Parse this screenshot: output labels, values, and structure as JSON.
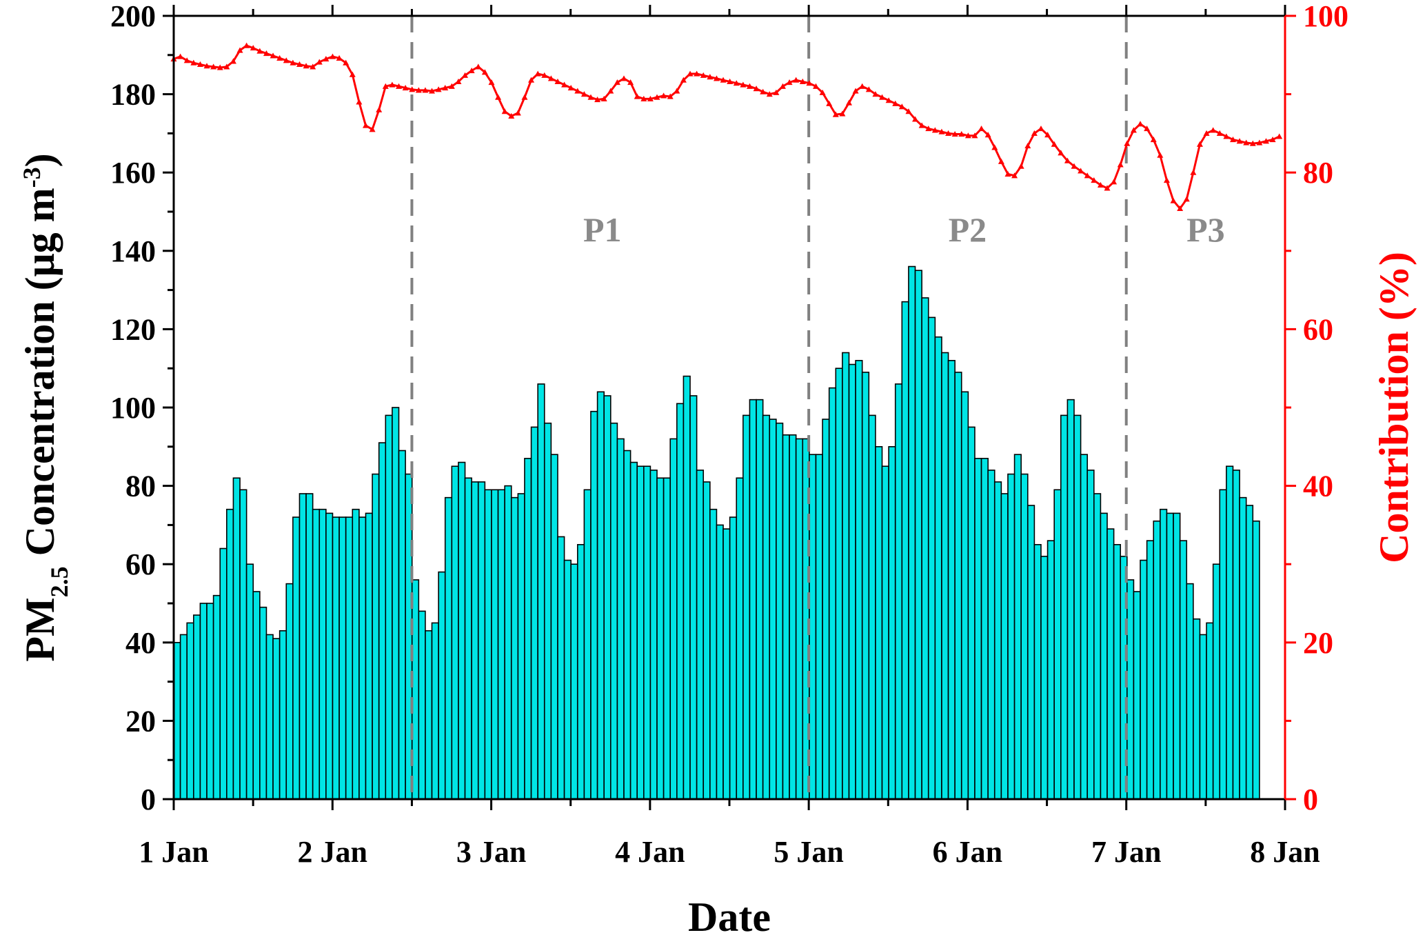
{
  "chart_data": {
    "type": "bar+line",
    "xlabel": "Date",
    "ylabel_left": {
      "main": "PM",
      "sub": "2.5",
      "rest": " Concentration (μg m",
      "sup": "-3",
      "close": ")"
    },
    "ylabel_right": "Contribution (%)",
    "xlim": [
      1,
      8
    ],
    "ylim_left": [
      0,
      200
    ],
    "ylim_right": [
      0,
      100
    ],
    "x_ticks": [
      {
        "value": 1,
        "label": "1 Jan"
      },
      {
        "value": 2,
        "label": "2 Jan"
      },
      {
        "value": 3,
        "label": "3 Jan"
      },
      {
        "value": 4,
        "label": "4 Jan"
      },
      {
        "value": 5,
        "label": "5 Jan"
      },
      {
        "value": 6,
        "label": "6 Jan"
      },
      {
        "value": 7,
        "label": "7 Jan"
      },
      {
        "value": 8,
        "label": "8 Jan"
      }
    ],
    "y_ticks_left": [
      0,
      20,
      40,
      60,
      80,
      100,
      120,
      140,
      160,
      180,
      200
    ],
    "y_ticks_right": [
      0,
      20,
      40,
      60,
      80,
      100
    ],
    "period_boundaries": [
      2.5,
      5,
      7
    ],
    "periods": [
      {
        "label": "P1",
        "x": 3.7
      },
      {
        "label": "P2",
        "x": 6.0
      },
      {
        "label": "P3",
        "x": 7.5
      }
    ],
    "bar_color": "#00e5e5",
    "bar_edge_color": "#000000",
    "line_color": "#ff0000",
    "right_axis_color": "#ff0000",
    "divider_color": "#808080",
    "bar_series": {
      "x_start": 1,
      "x_step": 0.0417,
      "values": [
        40,
        42,
        45,
        47,
        50,
        50,
        52,
        64,
        74,
        82,
        79,
        60,
        53,
        49,
        42,
        41,
        43,
        55,
        72,
        78,
        78,
        74,
        74,
        73,
        72,
        72,
        72,
        74,
        72,
        73,
        83,
        91,
        98,
        100,
        89,
        83,
        56,
        48,
        43,
        45,
        58,
        77,
        85,
        86,
        82,
        81,
        81,
        79,
        79,
        79,
        80,
        77,
        78,
        87,
        95,
        106,
        96,
        88,
        67,
        61,
        60,
        65,
        79,
        99,
        104,
        103,
        96,
        92,
        89,
        86,
        85,
        85,
        84,
        82,
        82,
        92,
        101,
        108,
        103,
        84,
        81,
        74,
        70,
        69,
        72,
        82,
        98,
        102,
        102,
        98,
        97,
        96,
        93,
        93,
        92,
        92,
        88,
        88,
        97,
        105,
        110,
        114,
        111,
        112,
        109,
        98,
        90,
        85,
        90,
        106,
        127,
        136,
        135,
        128,
        123,
        118,
        114,
        112,
        109,
        104,
        95,
        87,
        87,
        84,
        81,
        78,
        83,
        88,
        83,
        75,
        65,
        62,
        66,
        79,
        98,
        102,
        98,
        88,
        84,
        78,
        73,
        69,
        65,
        62,
        56,
        53,
        61,
        66,
        71,
        74,
        73,
        73,
        66,
        55,
        46,
        42,
        45,
        60,
        79,
        85,
        84,
        77,
        75,
        71
      ]
    },
    "line_series": {
      "x_start": 1,
      "x_step": 0.0417,
      "values": [
        94.5,
        94.8,
        94.3,
        94.0,
        93.8,
        93.6,
        93.5,
        93.4,
        93.5,
        94.2,
        95.6,
        96.2,
        95.9,
        95.5,
        95.2,
        94.9,
        94.6,
        94.3,
        94.0,
        93.8,
        93.6,
        93.5,
        94.1,
        94.5,
        94.8,
        94.6,
        94.0,
        92.5,
        89.0,
        86.0,
        85.5,
        88.0,
        91.0,
        91.2,
        91.0,
        90.8,
        90.6,
        90.5,
        90.5,
        90.4,
        90.6,
        90.8,
        91.0,
        91.6,
        92.4,
        93.0,
        93.5,
        92.8,
        91.5,
        89.6,
        87.8,
        87.2,
        87.6,
        89.6,
        91.8,
        92.6,
        92.4,
        92.0,
        91.6,
        91.2,
        90.8,
        90.4,
        90.0,
        89.6,
        89.3,
        89.4,
        90.4,
        91.5,
        92.0,
        91.5,
        89.7,
        89.4,
        89.4,
        89.6,
        89.8,
        89.7,
        90.4,
        91.8,
        92.6,
        92.6,
        92.4,
        92.2,
        92.0,
        91.8,
        91.6,
        91.4,
        91.2,
        91.0,
        90.7,
        90.3,
        90.0,
        90.2,
        91.0,
        91.5,
        91.8,
        91.6,
        91.4,
        91.0,
        90.2,
        88.8,
        87.4,
        87.5,
        88.9,
        90.4,
        91.0,
        90.6,
        90.0,
        89.6,
        89.2,
        88.8,
        88.4,
        87.8,
        86.8,
        86.0,
        85.6,
        85.4,
        85.2,
        85.0,
        84.9,
        84.9,
        84.7,
        84.7,
        85.6,
        84.8,
        83.2,
        81.4,
        79.8,
        79.6,
        80.8,
        83.4,
        85.0,
        85.6,
        84.8,
        83.6,
        82.5,
        81.5,
        80.8,
        80.2,
        79.6,
        79.0,
        78.4,
        78.0,
        78.8,
        81.0,
        83.7,
        85.4,
        86.2,
        85.6,
        84.2,
        82.2,
        79.0,
        76.4,
        75.4,
        76.6,
        80.0,
        83.6,
        85.0,
        85.4,
        85.0,
        84.6,
        84.2,
        84.0,
        83.8,
        83.7,
        83.8,
        84.0,
        84.2,
        84.6
      ]
    }
  }
}
